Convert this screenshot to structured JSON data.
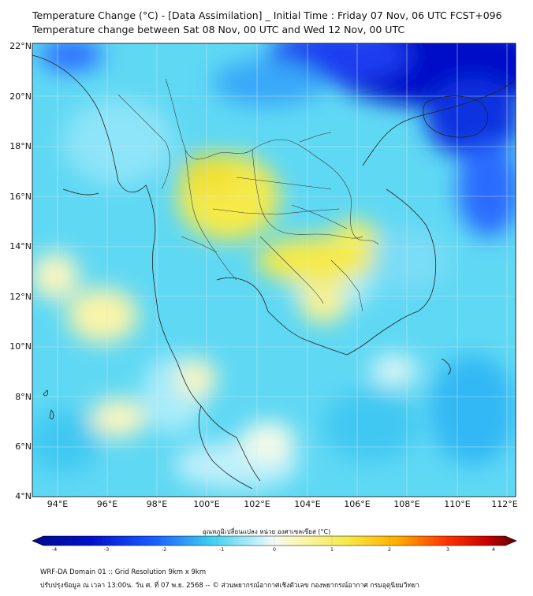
{
  "title": {
    "line1": "Temperature Change (°C) - [Data Assimilation] _ Initial Time : Friday 07 Nov, 06 UTC FCST+096",
    "line2": "Temperature change between Sat 08 Nov, 00 UTC and Wed 12 Nov, 00 UTC"
  },
  "axes": {
    "lat_labels": [
      "22°N",
      "20°N",
      "18°N",
      "16°N",
      "14°N",
      "12°N",
      "10°N",
      "8°N",
      "6°N",
      "4°N"
    ],
    "lon_labels": [
      "94°E",
      "96°E",
      "98°E",
      "100°E",
      "102°E",
      "104°E",
      "106°E",
      "108°E",
      "110°E",
      "112°E"
    ]
  },
  "colorbar": {
    "title": "อุณหภูมิเปลี่ยนแปลง หน่วย องศาเซลเซียส (°C)",
    "tick_labels": [
      "-4",
      "-3",
      "-2",
      "-1",
      "0",
      "1",
      "2",
      "3",
      "4"
    ],
    "min": -4,
    "max": 4
  },
  "footer": {
    "line1": "WRF-DA Domain 01 :: Grid Resolution 9km x 9km",
    "line2": "ปรับปรุงข้อมูล ณ เวลา 13:00น. วัน ศ. ที่ 07 พ.ย. 2568 -- © ส่วนพยากรณ์อากาศเชิงตัวเลข กองพยากรณ์อากาศ กรมอุตุนิยมวิทยา"
  },
  "colors": {
    "deep_blue": "#0010c8",
    "blue": "#1a5cff",
    "cyan": "#3fd0f0",
    "light_cyan": "#b6eefa",
    "pale": "#f4fbf4",
    "light_yellow": "#fbf6b4",
    "yellow": "#f5ea48",
    "orange": "#ff8a00",
    "red": "#d40000",
    "dark_red": "#6a0000"
  }
}
